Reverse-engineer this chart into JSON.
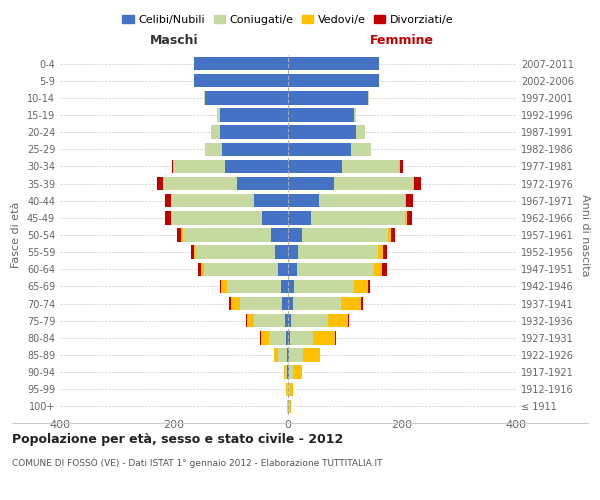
{
  "age_groups": [
    "100+",
    "95-99",
    "90-94",
    "85-89",
    "80-84",
    "75-79",
    "70-74",
    "65-69",
    "60-64",
    "55-59",
    "50-54",
    "45-49",
    "40-44",
    "35-39",
    "30-34",
    "25-29",
    "20-24",
    "15-19",
    "10-14",
    "5-9",
    "0-4"
  ],
  "birth_years": [
    "≤ 1911",
    "1912-1916",
    "1917-1921",
    "1922-1926",
    "1927-1931",
    "1932-1936",
    "1937-1941",
    "1942-1946",
    "1947-1951",
    "1952-1956",
    "1957-1961",
    "1962-1966",
    "1967-1971",
    "1972-1976",
    "1977-1981",
    "1982-1986",
    "1987-1991",
    "1992-1996",
    "1997-2001",
    "2002-2006",
    "2007-2011"
  ],
  "colors": {
    "celibi": "#4472c4",
    "coniugati": "#c5d9a0",
    "vedovi": "#ffc000",
    "divorziati": "#c00000"
  },
  "maschi": {
    "celibi": [
      0,
      0,
      1,
      2,
      3,
      5,
      10,
      12,
      18,
      22,
      30,
      45,
      60,
      90,
      110,
      115,
      120,
      120,
      145,
      165,
      165
    ],
    "coniugati": [
      1,
      2,
      4,
      15,
      30,
      55,
      75,
      95,
      130,
      140,
      155,
      160,
      145,
      130,
      90,
      30,
      15,
      5,
      2,
      0,
      0
    ],
    "vedovi": [
      0,
      1,
      2,
      8,
      15,
      12,
      15,
      10,
      5,
      3,
      2,
      1,
      1,
      0,
      1,
      0,
      0,
      0,
      0,
      0,
      0
    ],
    "divorziati": [
      0,
      0,
      0,
      0,
      1,
      2,
      3,
      3,
      5,
      6,
      8,
      10,
      10,
      10,
      3,
      1,
      0,
      0,
      0,
      0,
      0
    ]
  },
  "femmine": {
    "celibi": [
      0,
      0,
      1,
      2,
      3,
      5,
      8,
      10,
      15,
      18,
      25,
      40,
      55,
      80,
      95,
      110,
      120,
      115,
      140,
      160,
      160
    ],
    "coniugati": [
      2,
      3,
      8,
      25,
      40,
      65,
      85,
      105,
      135,
      140,
      150,
      165,
      150,
      140,
      100,
      35,
      15,
      5,
      2,
      0,
      0
    ],
    "vedovi": [
      3,
      5,
      15,
      30,
      40,
      35,
      35,
      25,
      15,
      8,
      5,
      3,
      2,
      1,
      1,
      0,
      0,
      0,
      0,
      0,
      0
    ],
    "divorziati": [
      0,
      0,
      0,
      0,
      1,
      2,
      3,
      4,
      8,
      7,
      8,
      10,
      12,
      12,
      5,
      1,
      0,
      0,
      0,
      0,
      0
    ]
  },
  "title": "Popolazione per età, sesso e stato civile - 2012",
  "subtitle": "COMUNE DI FOSSÒ (VE) - Dati ISTAT 1° gennaio 2012 - Elaborazione TUTTITALIA.IT",
  "xlabel_left": "Maschi",
  "xlabel_right": "Femmine",
  "ylabel_left": "Fasce di età",
  "ylabel_right": "Anni di nascita",
  "xlim": 400,
  "legend_labels": [
    "Celibi/Nubili",
    "Coniugati/e",
    "Vedovi/e",
    "Divorziati/e"
  ],
  "background_color": "#ffffff",
  "grid_color": "#cccccc"
}
